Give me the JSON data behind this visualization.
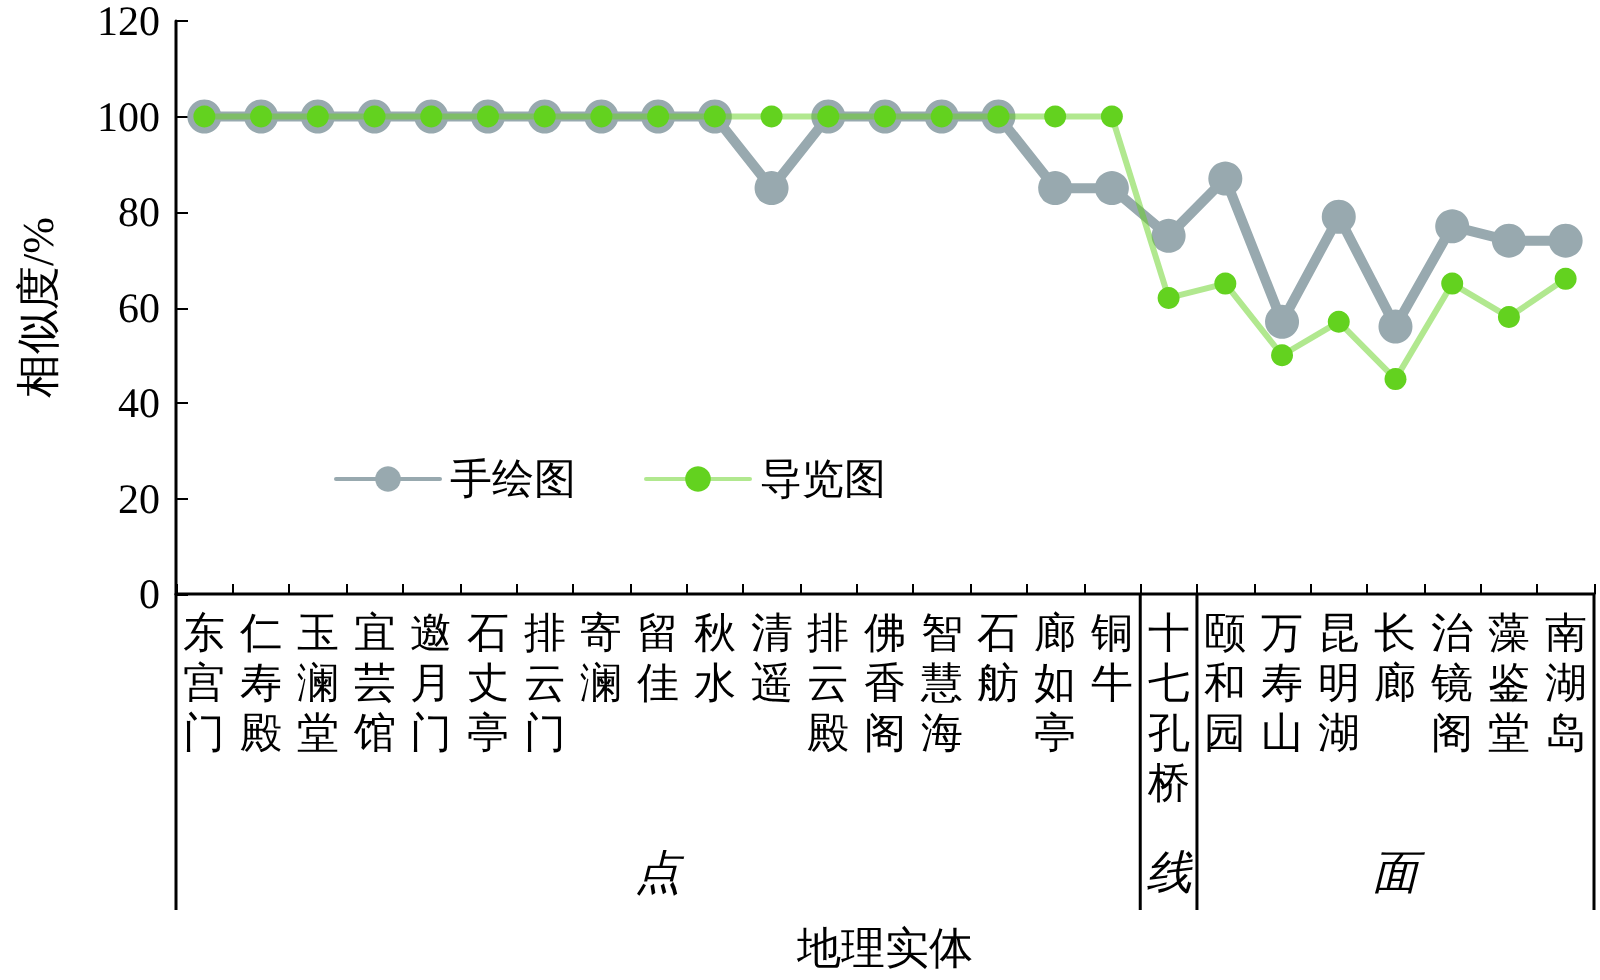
{
  "chart_data": {
    "type": "line",
    "xlabel": "地理实体",
    "ylabel": "相似度/%",
    "categories": [
      "东宫门",
      "仁寿殿",
      "玉澜堂",
      "宜芸馆",
      "邀月门",
      "石丈亭",
      "排云门",
      "寄澜",
      "留佳",
      "秋水",
      "清遥",
      "排云殿",
      "佛香阁",
      "智慧海",
      "石舫",
      "廊如亭",
      "铜牛",
      "十七孔桥",
      "颐和园",
      "万寿山",
      "昆明湖",
      "长廊",
      "治镜阁",
      "藻鉴堂",
      "南湖岛"
    ],
    "series": [
      {
        "name": "手绘图",
        "color": "#98a9af",
        "values": [
          100,
          100,
          100,
          100,
          100,
          100,
          100,
          100,
          100,
          100,
          85,
          100,
          100,
          100,
          100,
          85,
          85,
          75,
          87,
          57,
          79,
          56,
          77,
          74,
          74
        ]
      },
      {
        "name": "导览图",
        "color": "#63d21f",
        "values": [
          100,
          100,
          100,
          100,
          100,
          100,
          100,
          100,
          100,
          100,
          100,
          100,
          100,
          100,
          100,
          100,
          100,
          62,
          65,
          50,
          57,
          45,
          65,
          58,
          66
        ]
      }
    ],
    "ylim": [
      0,
      120
    ],
    "yticks": [
      0,
      20,
      40,
      60,
      80,
      100,
      120
    ],
    "grid": false,
    "legend": "bottom left",
    "marker": "circle",
    "line_style": "solid",
    "annotations": [
      "点",
      "线",
      "面"
    ]
  }
}
